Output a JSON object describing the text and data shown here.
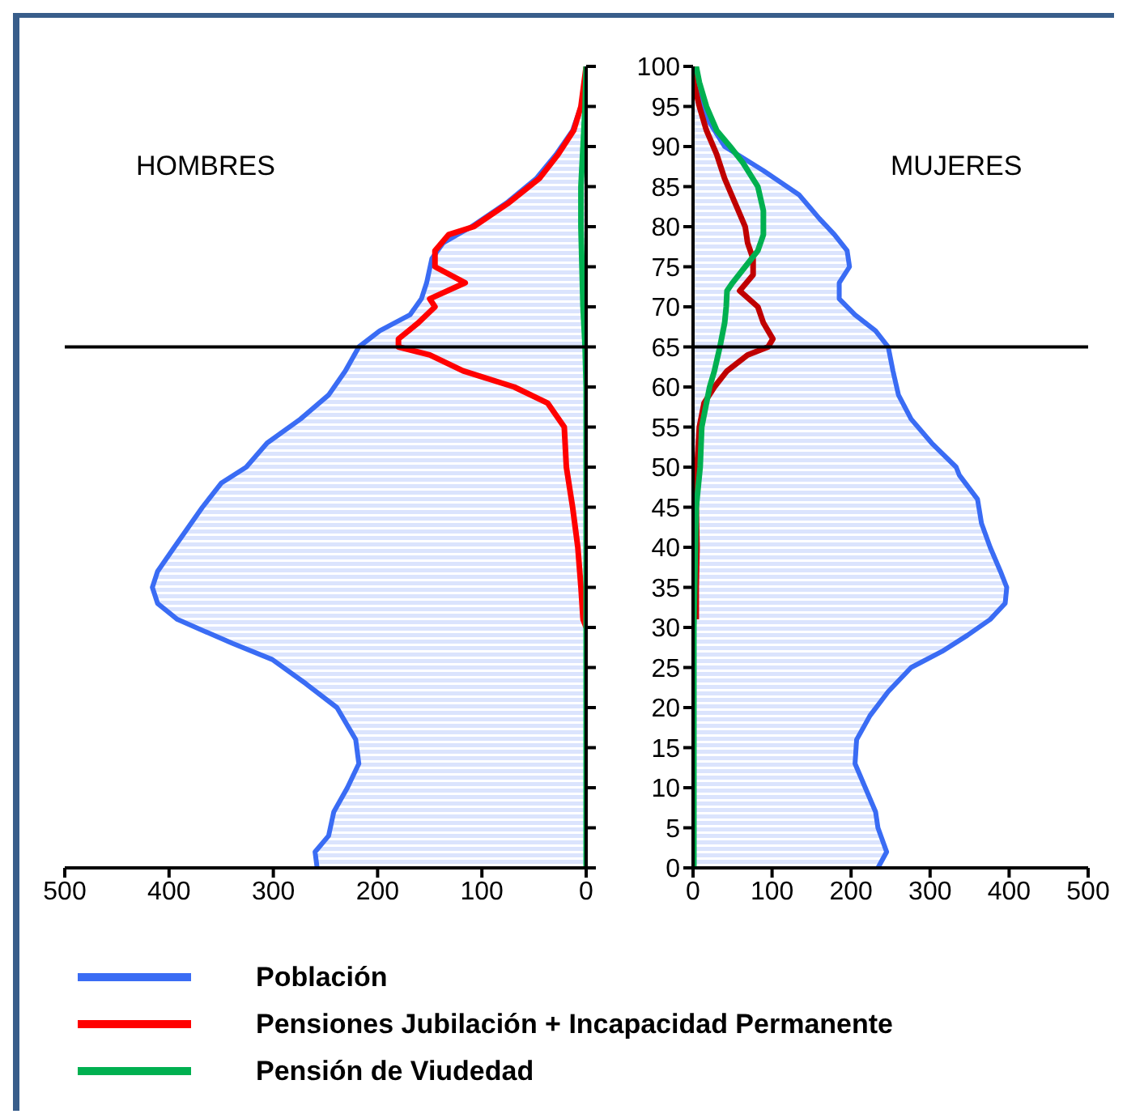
{
  "chart_data": [
    {
      "type": "line",
      "title": "HOMBRES",
      "orientation": "horizontal",
      "xlim": [
        500,
        0
      ],
      "xticks": [
        500,
        400,
        300,
        200,
        100,
        0
      ],
      "ylim": [
        0,
        100
      ],
      "yticks": [
        0,
        5,
        10,
        15,
        20,
        25,
        30,
        35,
        40,
        45,
        50,
        55,
        60,
        65,
        70,
        75,
        80,
        85,
        90,
        95,
        100
      ],
      "tick_labels": "x",
      "legend": "bottom",
      "ref_lines": [
        {
          "axis": "y",
          "value": 65,
          "color": "#000000"
        }
      ],
      "series": [
        {
          "name": "Población",
          "type": "area",
          "color": "#3a6cf4",
          "x": [
            0,
            2,
            4,
            7,
            10,
            13,
            16,
            20,
            23,
            26,
            28,
            31,
            33,
            35,
            37,
            40,
            45,
            48,
            50,
            53,
            56,
            59,
            62,
            65,
            67,
            69,
            71,
            73,
            76,
            78,
            80,
            83,
            86,
            89,
            92,
            95,
            98,
            100
          ],
          "values": [
            258,
            260,
            247,
            242,
            229,
            218,
            221,
            239,
            269,
            301,
            339,
            392,
            411,
            416,
            411,
            395,
            368,
            350,
            326,
            306,
            274,
            247,
            231,
            218,
            198,
            169,
            158,
            153,
            148,
            137,
            110,
            76,
            48,
            29,
            13,
            5,
            1,
            0
          ]
        },
        {
          "name": "Pensiones Jubilación + Incapacidad Permanente",
          "type": "line",
          "color": "#ff0000",
          "x": [
            30,
            31,
            35,
            40,
            45,
            50,
            55,
            58,
            60,
            62,
            64,
            65,
            66,
            68,
            70,
            71,
            73,
            75,
            77,
            79,
            80,
            83,
            86,
            89,
            92,
            95,
            98,
            100
          ],
          "values": [
            0,
            3,
            5,
            8,
            13,
            19,
            21,
            37,
            69,
            118,
            150,
            180,
            180,
            161,
            145,
            150,
            116,
            145,
            145,
            132,
            108,
            74,
            45,
            27,
            12,
            5,
            2,
            0
          ]
        },
        {
          "name": "Pensión de Viudedad",
          "type": "line",
          "color": "#00b050",
          "x": [
            0,
            60,
            65,
            70,
            75,
            80,
            85,
            90,
            95,
            100
          ],
          "values": [
            0,
            0,
            1,
            3,
            4,
            5,
            5,
            3,
            1,
            0
          ]
        }
      ]
    },
    {
      "type": "line",
      "title": "MUJERES",
      "orientation": "horizontal",
      "xlim": [
        0,
        500
      ],
      "xticks": [
        0,
        100,
        200,
        300,
        400,
        500
      ],
      "ylim": [
        0,
        100
      ],
      "yticks": [
        0,
        5,
        10,
        15,
        20,
        25,
        30,
        35,
        40,
        45,
        50,
        55,
        60,
        65,
        70,
        75,
        80,
        85,
        90,
        95,
        100
      ],
      "ref_lines": [
        {
          "axis": "y",
          "value": 65,
          "color": "#000000"
        }
      ],
      "series": [
        {
          "type": "area",
          "color": "#3a6cf4",
          "x": [
            0,
            2,
            5,
            7,
            10,
            13,
            16,
            19,
            22,
            25,
            27,
            29,
            31,
            33,
            35,
            37,
            40,
            43,
            46,
            49,
            50,
            53,
            56,
            59,
            62,
            65,
            67,
            69,
            71,
            73,
            75,
            77,
            79,
            81,
            84,
            87,
            90,
            93,
            96,
            99,
            100
          ],
          "values": [
            234,
            245,
            234,
            231,
            218,
            205,
            207,
            224,
            247,
            276,
            315,
            347,
            376,
            395,
            397,
            389,
            376,
            365,
            360,
            337,
            333,
            302,
            276,
            260,
            253,
            247,
            231,
            205,
            185,
            185,
            198,
            195,
            179,
            160,
            134,
            89,
            40,
            21,
            8,
            1,
            0
          ]
        },
        {
          "type": "line",
          "color": "#c00000",
          "x": [
            31,
            35,
            40,
            45,
            50,
            55,
            58,
            60,
            62,
            64,
            65,
            66,
            68,
            70,
            72,
            74,
            76,
            78,
            80,
            83,
            86,
            89,
            92,
            95,
            98,
            100
          ],
          "values": [
            4,
            4,
            5,
            4,
            5,
            8,
            14,
            27,
            43,
            69,
            95,
            101,
            89,
            82,
            59,
            76,
            76,
            69,
            66,
            53,
            40,
            30,
            17,
            8,
            1,
            0
          ]
        },
        {
          "type": "line",
          "color": "#00b050",
          "x": [
            0,
            30,
            35,
            40,
            45,
            50,
            55,
            58,
            60,
            62,
            65,
            68,
            70,
            72,
            73,
            75,
            77,
            79,
            82,
            85,
            88,
            90,
            92,
            95,
            98,
            100
          ],
          "values": [
            1,
            1,
            2,
            3,
            4,
            9,
            11,
            17,
            21,
            27,
            34,
            40,
            42,
            43,
            50,
            66,
            82,
            89,
            89,
            82,
            63,
            47,
            30,
            17,
            8,
            4
          ]
        }
      ]
    }
  ]
}
